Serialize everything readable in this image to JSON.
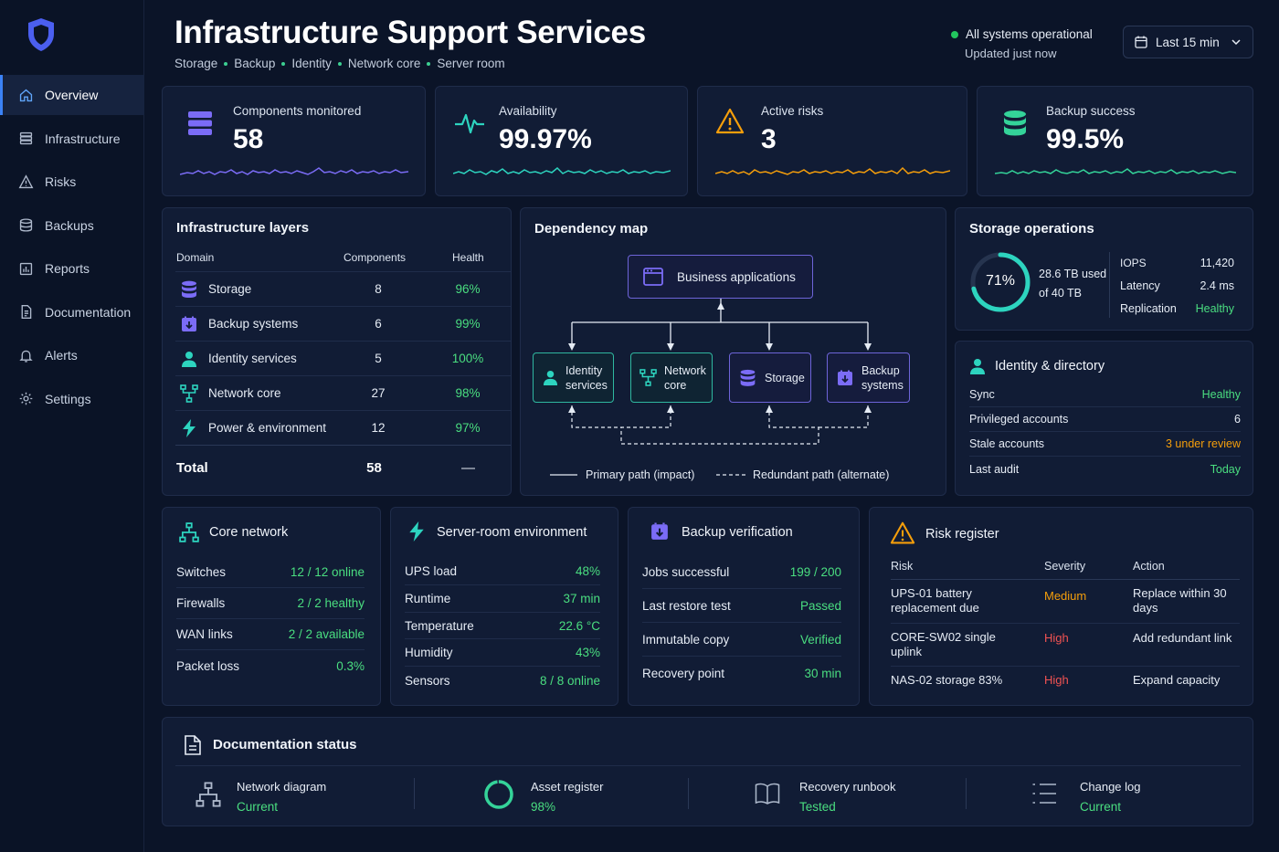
{
  "sidebar": {
    "items": [
      {
        "label": "Overview",
        "icon": "home-icon"
      },
      {
        "label": "Infrastructure",
        "icon": "server-icon"
      },
      {
        "label": "Risks",
        "icon": "warning-icon"
      },
      {
        "label": "Backups",
        "icon": "database-icon"
      },
      {
        "label": "Reports",
        "icon": "report-icon"
      },
      {
        "label": "Documentation",
        "icon": "document-icon"
      },
      {
        "label": "Alerts",
        "icon": "bell-icon"
      },
      {
        "label": "Settings",
        "icon": "gear-icon"
      }
    ]
  },
  "header": {
    "title": "Infrastructure Support Services",
    "breadcrumb": [
      "Storage",
      "Backup",
      "Identity",
      "Network core",
      "Server room"
    ],
    "status": "All systems operational",
    "updated": "Updated just now",
    "time_range": "Last 15 min"
  },
  "kpis": [
    {
      "label": "Components monitored",
      "value": "58",
      "color": "#7b6cf6"
    },
    {
      "label": "Availability",
      "value": "99.97%",
      "color": "#2dd4bf"
    },
    {
      "label": "Active risks",
      "value": "3",
      "color": "#f59e0b"
    },
    {
      "label": "Backup success",
      "value": "99.5%",
      "color": "#34d399"
    }
  ],
  "layers": {
    "title": "Infrastructure layers",
    "headers": {
      "domain": "Domain",
      "components": "Components",
      "health": "Health"
    },
    "rows": [
      {
        "name": "Storage",
        "components": "8",
        "health": "96%"
      },
      {
        "name": "Backup systems",
        "components": "6",
        "health": "99%"
      },
      {
        "name": "Identity services",
        "components": "5",
        "health": "100%"
      },
      {
        "name": "Network core",
        "components": "27",
        "health": "98%"
      },
      {
        "name": "Power & environment",
        "components": "12",
        "health": "97%"
      }
    ],
    "total_label": "Total",
    "total_value": "58",
    "total_health": "—"
  },
  "dependency": {
    "title": "Dependency map",
    "root": "Business applications",
    "nodes": [
      {
        "line1": "Identity",
        "line2": "services"
      },
      {
        "line1": "Network",
        "line2": "core"
      },
      {
        "line1": "Storage",
        "line2": ""
      },
      {
        "line1": "Backup",
        "line2": "systems"
      }
    ],
    "legend_primary": "Primary path (impact)",
    "legend_redundant": "Redundant path (alternate)"
  },
  "storage_ops": {
    "title": "Storage operations",
    "percent_label": "71%",
    "percent_value": 0.71,
    "used": "28.6 TB used",
    "total": "of 40 TB",
    "metrics": [
      {
        "k": "IOPS",
        "v": "11,420"
      },
      {
        "k": "Latency",
        "v": "2.4 ms"
      },
      {
        "k": "Replication",
        "v": "Healthy"
      }
    ]
  },
  "identity": {
    "title": "Identity & directory",
    "rows": [
      {
        "k": "Sync",
        "v": "Healthy"
      },
      {
        "k": "Privileged accounts",
        "v": "6"
      },
      {
        "k": "Stale accounts",
        "v": "3 under review"
      },
      {
        "k": "Last audit",
        "v": "Today"
      }
    ]
  },
  "core_network": {
    "title": "Core network",
    "rows": [
      {
        "k": "Switches",
        "v": "12 / 12 online"
      },
      {
        "k": "Firewalls",
        "v": "2 / 2 healthy"
      },
      {
        "k": "WAN links",
        "v": "2 / 2 available"
      },
      {
        "k": "Packet loss",
        "v": "0.3%"
      }
    ]
  },
  "server_room": {
    "title": "Server-room environment",
    "rows": [
      {
        "k": "UPS load",
        "v": "48%"
      },
      {
        "k": "Runtime",
        "v": "37 min"
      },
      {
        "k": "Temperature",
        "v": "22.6 °C"
      },
      {
        "k": "Humidity",
        "v": "43%"
      },
      {
        "k": "Sensors",
        "v": "8 / 8 online"
      }
    ]
  },
  "backup_verification": {
    "title": "Backup verification",
    "rows": [
      {
        "k": "Jobs successful",
        "v": "199 / 200"
      },
      {
        "k": "Last restore test",
        "v": "Passed"
      },
      {
        "k": "Immutable copy",
        "v": "Verified"
      },
      {
        "k": "Recovery point",
        "v": "30 min"
      }
    ]
  },
  "risk_register": {
    "title": "Risk register",
    "headers": {
      "risk": "Risk",
      "severity": "Severity",
      "action": "Action"
    },
    "rows": [
      {
        "risk": "UPS-01 battery replacement due",
        "severity": "Medium",
        "action": "Replace within 30 days"
      },
      {
        "risk": "CORE-SW02 single uplink",
        "severity": "High",
        "action": "Add redundant link"
      },
      {
        "risk": "NAS-02 storage 83%",
        "severity": "High",
        "action": "Expand capacity"
      }
    ],
    "colors": {
      "Medium": "#f59e0b",
      "High": "#f05252"
    }
  },
  "documentation": {
    "title": "Documentation status",
    "items": [
      {
        "label": "Network diagram",
        "value": "Current",
        "icon": "network-diagram-icon"
      },
      {
        "label": "Asset register",
        "value": "98%",
        "icon": "progress-ring-icon",
        "progress": 0.98
      },
      {
        "label": "Recovery runbook",
        "value": "Tested",
        "icon": "book-icon"
      },
      {
        "label": "Change log",
        "value": "Current",
        "icon": "list-icon"
      }
    ]
  }
}
